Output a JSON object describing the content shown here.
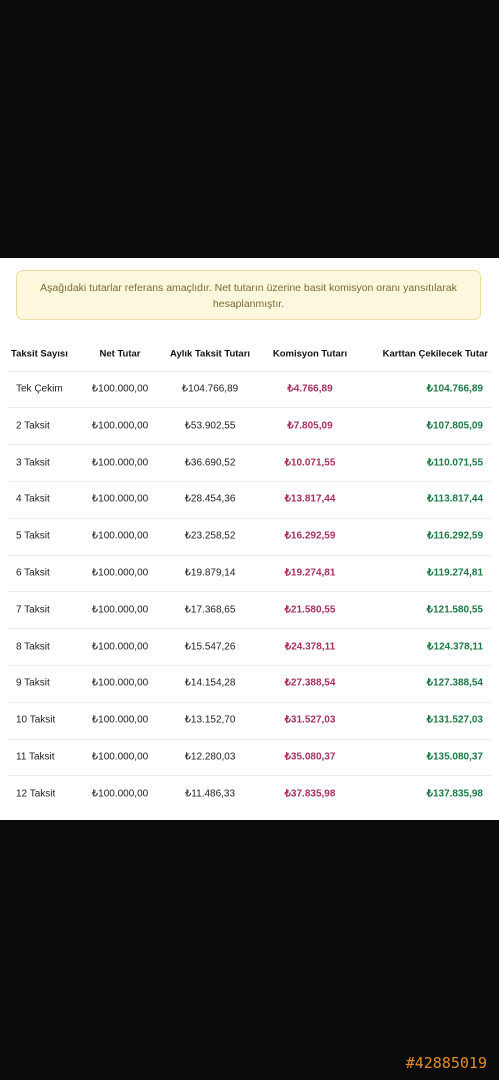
{
  "notice": "Aşağıdaki tutarlar referans amaçlıdır. Net tutarın üzerine basit komisyon oranı yansıtılarak hesaplanmıştır.",
  "table": {
    "headers": [
      "Taksit Sayısı",
      "Net Tutar",
      "Aylık Taksit Tutarı",
      "Komisyon Tutarı",
      "Karttan Çekilecek Tutar"
    ],
    "rows": [
      [
        "Tek Çekim",
        "₺100.000,00",
        "₺104.766,89",
        "₺4.766,89",
        "₺104.766,89"
      ],
      [
        "2 Taksit",
        "₺100.000,00",
        "₺53.902,55",
        "₺7.805,09",
        "₺107.805,09"
      ],
      [
        "3 Taksit",
        "₺100.000,00",
        "₺36.690,52",
        "₺10.071,55",
        "₺110.071,55"
      ],
      [
        "4 Taksit",
        "₺100.000,00",
        "₺28.454,36",
        "₺13.817,44",
        "₺113.817,44"
      ],
      [
        "5 Taksit",
        "₺100.000,00",
        "₺23.258,52",
        "₺16.292,59",
        "₺116.292,59"
      ],
      [
        "6 Taksit",
        "₺100.000,00",
        "₺19.879,14",
        "₺19.274,81",
        "₺119.274,81"
      ],
      [
        "7 Taksit",
        "₺100.000,00",
        "₺17.368,65",
        "₺21.580,55",
        "₺121.580,55"
      ],
      [
        "8 Taksit",
        "₺100.000,00",
        "₺15.547,26",
        "₺24.378,11",
        "₺124.378,11"
      ],
      [
        "9 Taksit",
        "₺100.000,00",
        "₺14.154,28",
        "₺27.388,54",
        "₺127.388,54"
      ],
      [
        "10 Taksit",
        "₺100.000,00",
        "₺13.152,70",
        "₺31.527,03",
        "₺131.527,03"
      ],
      [
        "11 Taksit",
        "₺100.000,00",
        "₺12.280,03",
        "₺35.080,37",
        "₺135.080,37"
      ],
      [
        "12 Taksit",
        "₺100.000,00",
        "₺11.486,33",
        "₺37.835,98",
        "₺137.835,98"
      ]
    ]
  },
  "watermark": "#42885019"
}
